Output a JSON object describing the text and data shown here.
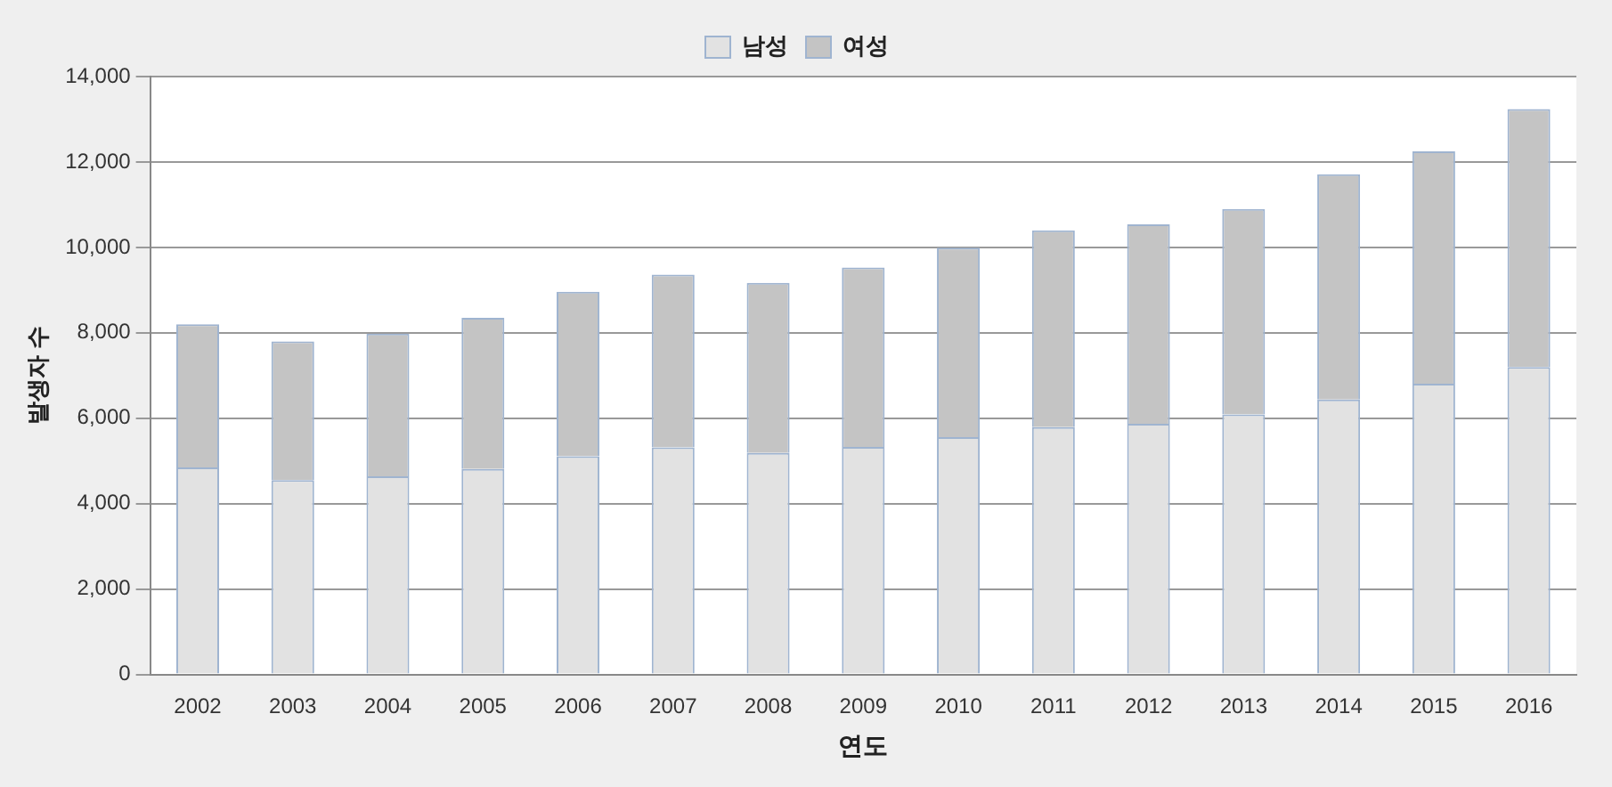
{
  "chart_data": {
    "type": "bar",
    "stacked": true,
    "xlabel": "연도",
    "ylabel": "발생자 수",
    "categories": [
      "2002",
      "2003",
      "2004",
      "2005",
      "2006",
      "2007",
      "2008",
      "2009",
      "2010",
      "2011",
      "2012",
      "2013",
      "2014",
      "2015",
      "2016"
    ],
    "series": [
      {
        "name": "남성",
        "color": "#e2e2e2",
        "values": [
          4850,
          4550,
          4640,
          4810,
          5110,
          5320,
          5190,
          5330,
          5560,
          5790,
          5870,
          6090,
          6440,
          6810,
          7200
        ]
      },
      {
        "name": "여성",
        "color": "#c4c4c4",
        "values": [
          3350,
          3250,
          3340,
          3540,
          3850,
          4040,
          3980,
          4200,
          4430,
          4610,
          4670,
          4810,
          5270,
          5440,
          6040
        ]
      }
    ],
    "ylim": [
      0,
      14000
    ],
    "yticks": [
      0,
      {
        "value": 2000,
        "label": "2,000"
      },
      {
        "value": 4000,
        "label": "4,000"
      },
      {
        "value": 6000,
        "label": "6,000"
      },
      {
        "value": 8000,
        "label": "8,000"
      },
      {
        "value": 10000,
        "label": "10,000"
      },
      {
        "value": 12000,
        "label": "12,000"
      },
      {
        "value": 14000,
        "label": "14,000"
      }
    ],
    "grid": "y",
    "legend": "top"
  }
}
